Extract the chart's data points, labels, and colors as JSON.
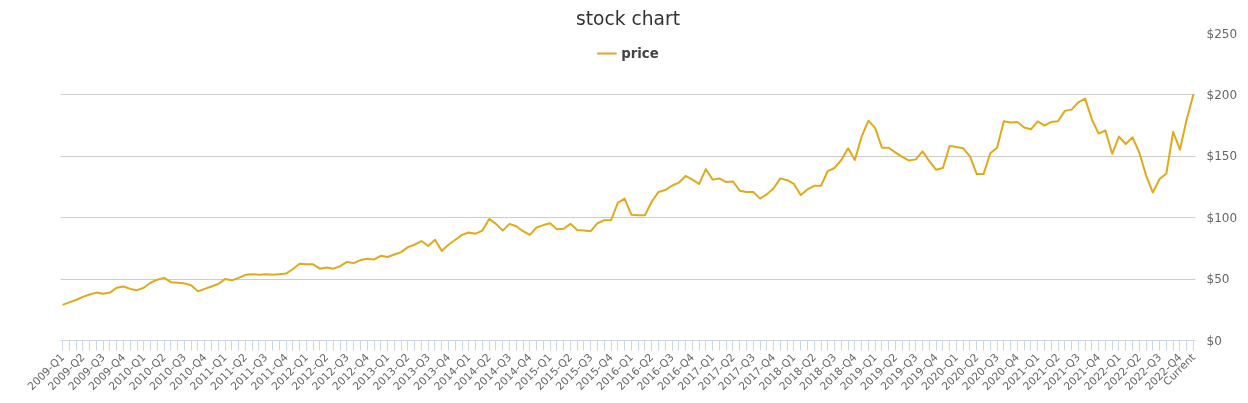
{
  "chart_data": {
    "type": "line",
    "title": "stock chart",
    "categories": [
      "2009-Q1",
      null,
      null,
      "2009-Q2",
      null,
      null,
      "2009-Q3",
      null,
      null,
      "2009-Q4",
      null,
      null,
      "2010-Q1",
      null,
      null,
      "2010-Q2",
      null,
      null,
      "2010-Q3",
      null,
      null,
      "2010-Q4",
      null,
      null,
      "2011-Q1",
      null,
      null,
      "2011-Q2",
      null,
      null,
      "2011-Q3",
      null,
      null,
      "2011-Q4",
      null,
      null,
      "2012-Q1",
      null,
      null,
      "2012-Q2",
      null,
      null,
      "2012-Q3",
      null,
      null,
      "2012-Q4",
      null,
      null,
      "2013-Q1",
      null,
      null,
      "2013-Q2",
      null,
      null,
      "2013-Q3",
      null,
      null,
      "2013-Q4",
      null,
      null,
      "2014-Q1",
      null,
      null,
      "2014-Q2",
      null,
      null,
      "2014-Q3",
      null,
      null,
      "2014-Q4",
      null,
      null,
      "2015-Q1",
      null,
      null,
      "2015-Q2",
      null,
      null,
      "2015-Q3",
      null,
      null,
      "2015-Q4",
      null,
      null,
      "2016-Q1",
      null,
      null,
      "2016-Q2",
      null,
      null,
      "2016-Q3",
      null,
      null,
      "2016-Q4",
      null,
      null,
      "2017-Q1",
      null,
      null,
      "2017-Q2",
      null,
      null,
      "2017-Q3",
      null,
      null,
      "2017-Q4",
      null,
      null,
      "2018-Q1",
      null,
      null,
      "2018-Q2",
      null,
      null,
      "2018-Q3",
      null,
      null,
      "2018-Q4",
      null,
      null,
      "2019-Q1",
      null,
      null,
      "2019-Q2",
      null,
      null,
      "2019-Q3",
      null,
      null,
      "2019-Q4",
      null,
      null,
      "2020-Q1",
      null,
      null,
      "2020-Q2",
      null,
      null,
      "2020-Q3",
      null,
      null,
      "2020-Q4",
      null,
      null,
      "2021-Q1",
      null,
      null,
      "2021-Q2",
      null,
      null,
      "2021-Q3",
      null,
      null,
      "2021-Q4",
      null,
      null,
      "2022-Q1",
      null,
      null,
      "2022-Q2",
      null,
      null,
      "2022-Q3",
      null,
      null,
      "2022-Q4",
      null,
      "Current"
    ],
    "series": [
      {
        "name": "price",
        "color": "#e0aa1c",
        "values": [
          29,
          31,
          33,
          35.5,
          37.5,
          39,
          38,
          39,
          43,
          44,
          42,
          41,
          43,
          47,
          49.5,
          51,
          47.5,
          47,
          46.5,
          45,
          40,
          42,
          44,
          46,
          50,
          49,
          51,
          53.5,
          54,
          53.5,
          54,
          53.5,
          54,
          54.5,
          58,
          62.5,
          62,
          62,
          58.5,
          59.5,
          58.5,
          60.5,
          64,
          63,
          65.5,
          66.5,
          66,
          69,
          68,
          70,
          72,
          76,
          78,
          81,
          77,
          82,
          73,
          78,
          82,
          86,
          88,
          87,
          89.5,
          99,
          95,
          89.5,
          95,
          93,
          89,
          86,
          92,
          94,
          95.5,
          90.5,
          91,
          95,
          90,
          89.5,
          89,
          95.5,
          98,
          98,
          112,
          115.5,
          102.5,
          102,
          102,
          113,
          121,
          122.5,
          126,
          128.5,
          134,
          131,
          127.5,
          139.5,
          131,
          132,
          129,
          129.5,
          122,
          121,
          121,
          115.5,
          119,
          124,
          132,
          130.5,
          127.5,
          118.5,
          123,
          126,
          126,
          138,
          140.5,
          147,
          156.5,
          147,
          166,
          179,
          173,
          157,
          157,
          153,
          149.5,
          146.5,
          147.5,
          154,
          146,
          139,
          140.5,
          158.5,
          157.5,
          156.5,
          150,
          135.5,
          135.5,
          152.5,
          157,
          178.5,
          177.5,
          178,
          173.5,
          172,
          178.5,
          175,
          178,
          178.5,
          187,
          188,
          194,
          197,
          180,
          168.5,
          171,
          152,
          166,
          160,
          165.5,
          153,
          134.5,
          120.5,
          131.5,
          136,
          170,
          155.5,
          180,
          200.5
        ]
      }
    ],
    "ylim": [
      0,
      250
    ],
    "yticks": [
      {
        "value": 0,
        "label": "$0"
      },
      {
        "value": 50,
        "label": "$50"
      },
      {
        "value": 100,
        "label": "$100"
      },
      {
        "value": 150,
        "label": "$150"
      },
      {
        "value": 200,
        "label": "$200"
      },
      {
        "value": 250,
        "label": "$250"
      }
    ],
    "grid": "y",
    "legend": "top"
  }
}
